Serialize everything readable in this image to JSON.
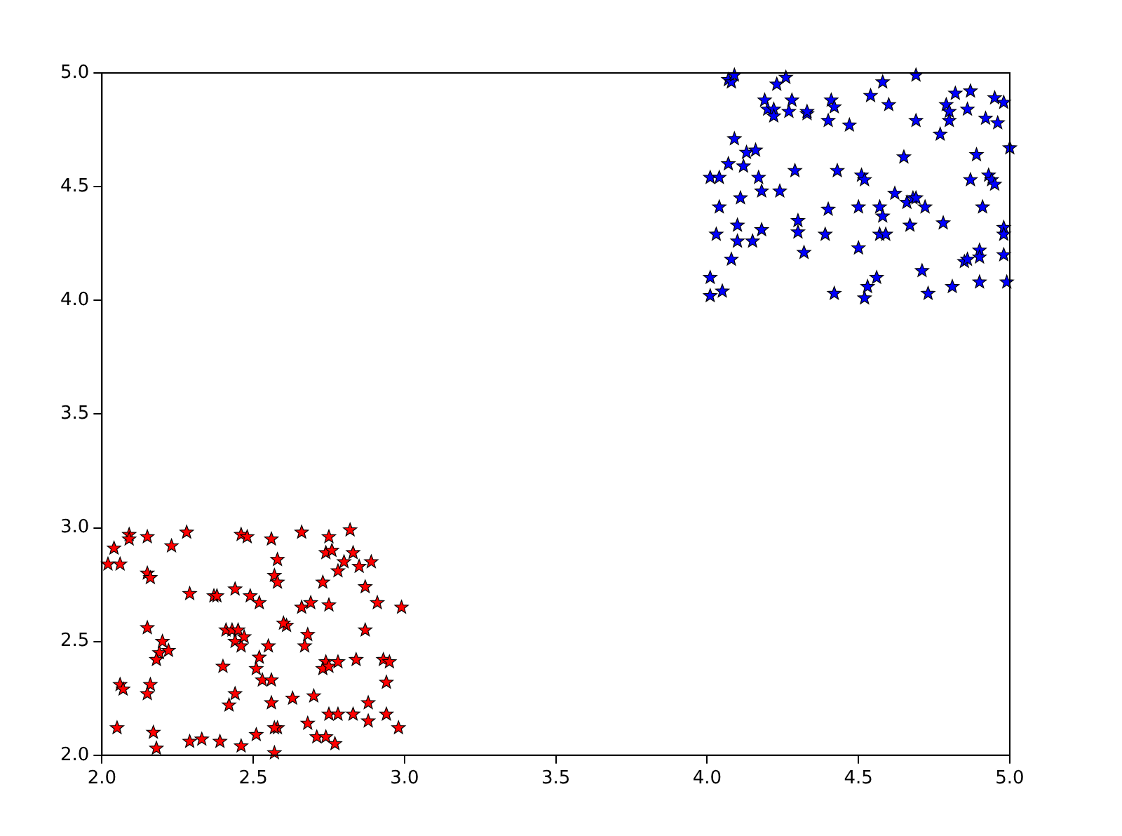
{
  "chart_data": {
    "type": "scatter",
    "marker": "star",
    "grid": false,
    "legend": false,
    "xlim": [
      2.0,
      5.0
    ],
    "ylim": [
      2.0,
      5.0
    ],
    "xticks": [
      {
        "value": 2,
        "label": "2.0"
      },
      {
        "value": 2.5,
        "label": "2.5"
      },
      {
        "value": 3,
        "label": "3.0"
      },
      {
        "value": 3.5,
        "label": "3.5"
      },
      {
        "value": 4,
        "label": "4.0"
      },
      {
        "value": 4.5,
        "label": "4.5"
      },
      {
        "value": 5,
        "label": "5.0"
      }
    ],
    "yticks": [
      {
        "value": 2,
        "label": "2.0"
      },
      {
        "value": 2.5,
        "label": "2.5"
      },
      {
        "value": 3,
        "label": "3.0"
      },
      {
        "value": 3.5,
        "label": "3.5"
      },
      {
        "value": 4,
        "label": "4.0"
      },
      {
        "value": 4.5,
        "label": "4.5"
      },
      {
        "value": 5,
        "label": "5.0"
      }
    ],
    "series": [
      {
        "color": "#ff0000",
        "x": [
          2.02,
          2.04,
          2.06,
          2.09,
          2.09,
          2.15,
          2.23,
          2.28,
          2.15,
          2.16,
          2.29,
          2.37,
          2.38,
          2.41,
          2.43,
          2.45,
          2.15,
          2.19,
          2.18,
          2.2,
          2.22,
          2.06,
          2.07,
          2.05,
          2.16,
          2.15,
          2.17,
          2.18,
          2.29,
          2.33,
          2.39,
          2.46,
          2.51,
          2.44,
          2.46,
          2.48,
          2.56,
          2.49,
          2.52,
          2.57,
          2.58,
          2.58,
          2.61,
          2.6,
          2.44,
          2.46,
          2.47,
          2.4,
          2.44,
          2.42,
          2.51,
          2.52,
          2.55,
          2.53,
          2.56,
          2.56,
          2.58,
          2.57,
          2.57,
          2.63,
          2.66,
          2.66,
          2.69,
          2.67,
          2.68,
          2.68,
          2.7,
          2.71,
          2.73,
          2.74,
          2.76,
          2.75,
          2.74,
          2.73,
          2.75,
          2.78,
          2.75,
          2.78,
          2.8,
          2.82,
          2.83,
          2.85,
          2.87,
          2.89,
          2.84,
          2.87,
          2.91,
          2.93,
          2.95,
          2.94,
          2.75,
          2.74,
          2.77,
          2.78,
          2.83,
          2.88,
          2.88,
          2.94,
          2.98,
          2.99
        ],
        "values": [
          2.84,
          2.91,
          2.84,
          2.97,
          2.95,
          2.96,
          2.92,
          2.98,
          2.8,
          2.78,
          2.71,
          2.7,
          2.7,
          2.55,
          2.55,
          2.55,
          2.56,
          2.45,
          2.42,
          2.5,
          2.46,
          2.31,
          2.29,
          2.12,
          2.31,
          2.27,
          2.1,
          2.03,
          2.06,
          2.07,
          2.06,
          2.04,
          2.09,
          2.73,
          2.97,
          2.96,
          2.95,
          2.7,
          2.67,
          2.79,
          2.86,
          2.76,
          2.57,
          2.58,
          2.5,
          2.48,
          2.52,
          2.39,
          2.27,
          2.22,
          2.38,
          2.43,
          2.48,
          2.33,
          2.33,
          2.23,
          2.12,
          2.12,
          2.01,
          2.25,
          2.98,
          2.65,
          2.67,
          2.48,
          2.53,
          2.14,
          2.26,
          2.08,
          2.76,
          2.89,
          2.9,
          2.96,
          2.41,
          2.38,
          2.39,
          2.41,
          2.66,
          2.81,
          2.85,
          2.99,
          2.89,
          2.83,
          2.74,
          2.85,
          2.42,
          2.55,
          2.67,
          2.42,
          2.41,
          2.32,
          2.18,
          2.08,
          2.05,
          2.18,
          2.18,
          2.23,
          2.15,
          2.18,
          2.12,
          2.65
        ]
      },
      {
        "color": "#0000ff",
        "x": [
          4.01,
          4.01,
          4.01,
          4.03,
          4.05,
          4.04,
          4.04,
          4.07,
          4.07,
          4.08,
          4.09,
          4.08,
          4.1,
          4.1,
          4.09,
          4.11,
          4.12,
          4.13,
          4.15,
          4.16,
          4.17,
          4.18,
          4.18,
          4.19,
          4.2,
          4.22,
          4.22,
          4.23,
          4.24,
          4.26,
          4.27,
          4.28,
          4.29,
          4.3,
          4.3,
          4.32,
          4.33,
          4.33,
          4.39,
          4.4,
          4.4,
          4.41,
          4.42,
          4.42,
          4.43,
          4.47,
          4.5,
          4.5,
          4.51,
          4.52,
          4.52,
          4.53,
          4.54,
          4.56,
          4.57,
          4.57,
          4.58,
          4.58,
          4.59,
          4.6,
          4.62,
          4.65,
          4.66,
          4.67,
          4.68,
          4.69,
          4.69,
          4.69,
          4.71,
          4.72,
          4.73,
          4.77,
          4.78,
          4.79,
          4.8,
          4.81,
          4.82,
          4.8,
          4.85,
          4.86,
          4.86,
          4.87,
          4.87,
          4.89,
          4.9,
          4.9,
          4.9,
          4.91,
          4.92,
          4.93,
          4.94,
          4.95,
          4.95,
          4.96,
          4.98,
          4.98,
          4.98,
          4.98,
          4.99,
          5.0
        ],
        "values": [
          4.02,
          4.1,
          4.54,
          4.29,
          4.04,
          4.41,
          4.54,
          4.6,
          4.97,
          4.96,
          4.99,
          4.18,
          4.26,
          4.33,
          4.71,
          4.45,
          4.59,
          4.65,
          4.26,
          4.66,
          4.54,
          4.31,
          4.48,
          4.88,
          4.84,
          4.84,
          4.81,
          4.95,
          4.48,
          4.98,
          4.83,
          4.88,
          4.57,
          4.3,
          4.35,
          4.21,
          4.82,
          4.83,
          4.29,
          4.4,
          4.79,
          4.88,
          4.85,
          4.03,
          4.57,
          4.77,
          4.23,
          4.41,
          4.55,
          4.53,
          4.01,
          4.06,
          4.9,
          4.1,
          4.41,
          4.29,
          4.37,
          4.96,
          4.29,
          4.86,
          4.47,
          4.63,
          4.43,
          4.33,
          4.45,
          4.99,
          4.45,
          4.79,
          4.13,
          4.41,
          4.03,
          4.73,
          4.34,
          4.86,
          4.83,
          4.06,
          4.91,
          4.79,
          4.17,
          4.18,
          4.84,
          4.92,
          4.53,
          4.64,
          4.22,
          4.19,
          4.08,
          4.41,
          4.8,
          4.55,
          4.53,
          4.51,
          4.89,
          4.78,
          4.87,
          4.32,
          4.29,
          4.2,
          4.08,
          4.67
        ]
      }
    ]
  }
}
